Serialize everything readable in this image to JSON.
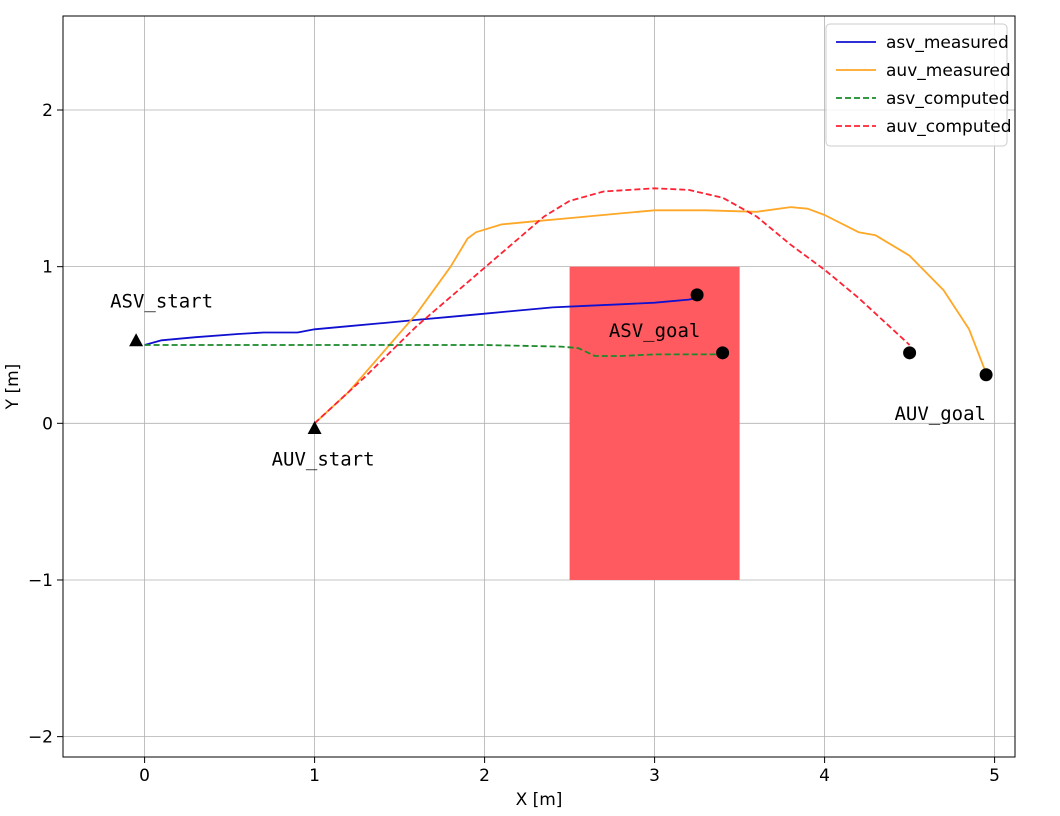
{
  "chart_data": {
    "type": "line",
    "xlabel": "X [m]",
    "ylabel": "Y [m]",
    "xlim": [
      -0.48,
      5.12
    ],
    "ylim": [
      -2.13,
      2.6
    ],
    "xticks": [
      0,
      1,
      2,
      3,
      4,
      5
    ],
    "yticks": [
      -2,
      -1,
      0,
      1,
      2
    ],
    "xtick_labels": [
      "0",
      "1",
      "2",
      "3",
      "4",
      "5"
    ],
    "ytick_labels": [
      "−2",
      "−1",
      "0",
      "1",
      "2"
    ],
    "grid": true,
    "legend_position": "top-right",
    "obstacle": {
      "x": [
        2.5,
        3.5
      ],
      "y": [
        -1.0,
        1.0
      ],
      "color": "#ff5a5f"
    },
    "series": [
      {
        "name": "asv_measured",
        "color": "#1010d0",
        "dash": "solid",
        "x": [
          0.0,
          0.1,
          0.3,
          0.55,
          0.7,
          0.9,
          1.0,
          1.2,
          1.4,
          1.6,
          1.8,
          2.0,
          2.2,
          2.4,
          2.6,
          2.8,
          3.0,
          3.2,
          3.25
        ],
        "y": [
          0.5,
          0.53,
          0.55,
          0.57,
          0.58,
          0.58,
          0.6,
          0.62,
          0.64,
          0.66,
          0.68,
          0.7,
          0.72,
          0.74,
          0.75,
          0.76,
          0.77,
          0.79,
          0.8
        ]
      },
      {
        "name": "auv_measured",
        "color": "#ffa726",
        "dash": "solid",
        "x": [
          1.0,
          1.2,
          1.4,
          1.6,
          1.8,
          1.9,
          1.95,
          2.1,
          2.3,
          2.5,
          2.8,
          3.0,
          3.3,
          3.6,
          3.8,
          3.9,
          4.0,
          4.2,
          4.3,
          4.5,
          4.7,
          4.85,
          4.95
        ],
        "y": [
          0.0,
          0.2,
          0.45,
          0.7,
          1.0,
          1.18,
          1.22,
          1.27,
          1.29,
          1.31,
          1.34,
          1.36,
          1.36,
          1.35,
          1.38,
          1.37,
          1.33,
          1.22,
          1.2,
          1.07,
          0.85,
          0.6,
          0.32
        ]
      },
      {
        "name": "asv_computed",
        "color": "#1a8a2a",
        "dash": "dashed",
        "x": [
          0.0,
          0.5,
          1.0,
          1.5,
          2.0,
          2.45,
          2.55,
          2.65,
          2.8,
          3.0,
          3.2,
          3.4
        ],
        "y": [
          0.5,
          0.5,
          0.5,
          0.5,
          0.5,
          0.49,
          0.48,
          0.43,
          0.43,
          0.44,
          0.44,
          0.44
        ]
      },
      {
        "name": "auv_computed",
        "color": "#ff2233",
        "dash": "dashed",
        "x": [
          1.0,
          1.3,
          1.6,
          1.9,
          2.2,
          2.35,
          2.5,
          2.7,
          3.0,
          3.2,
          3.4,
          3.6,
          3.8,
          4.0,
          4.2,
          4.4,
          4.5
        ],
        "y": [
          0.0,
          0.3,
          0.62,
          0.9,
          1.18,
          1.32,
          1.42,
          1.48,
          1.5,
          1.49,
          1.44,
          1.32,
          1.14,
          0.98,
          0.8,
          0.6,
          0.5
        ]
      }
    ],
    "markers": [
      {
        "label": "ASV_start",
        "shape": "triangle",
        "x": -0.05,
        "y": 0.53,
        "label_x": 0.1,
        "label_y": 0.74
      },
      {
        "label": "AUV_start",
        "shape": "triangle",
        "x": 1.0,
        "y": -0.03,
        "label_x": 1.05,
        "label_y": -0.27
      },
      {
        "label": "ASV_goal",
        "shape": "circle",
        "x": 3.4,
        "y": 0.45,
        "label_x": 3.0,
        "label_y": 0.55
      },
      {
        "label": "",
        "shape": "circle",
        "x": 3.25,
        "y": 0.82
      },
      {
        "label": "AUV_goal",
        "shape": "circle",
        "x": 4.95,
        "y": 0.31,
        "label_x": 4.68,
        "label_y": 0.02
      },
      {
        "label": "",
        "shape": "circle",
        "x": 4.5,
        "y": 0.45
      }
    ]
  }
}
